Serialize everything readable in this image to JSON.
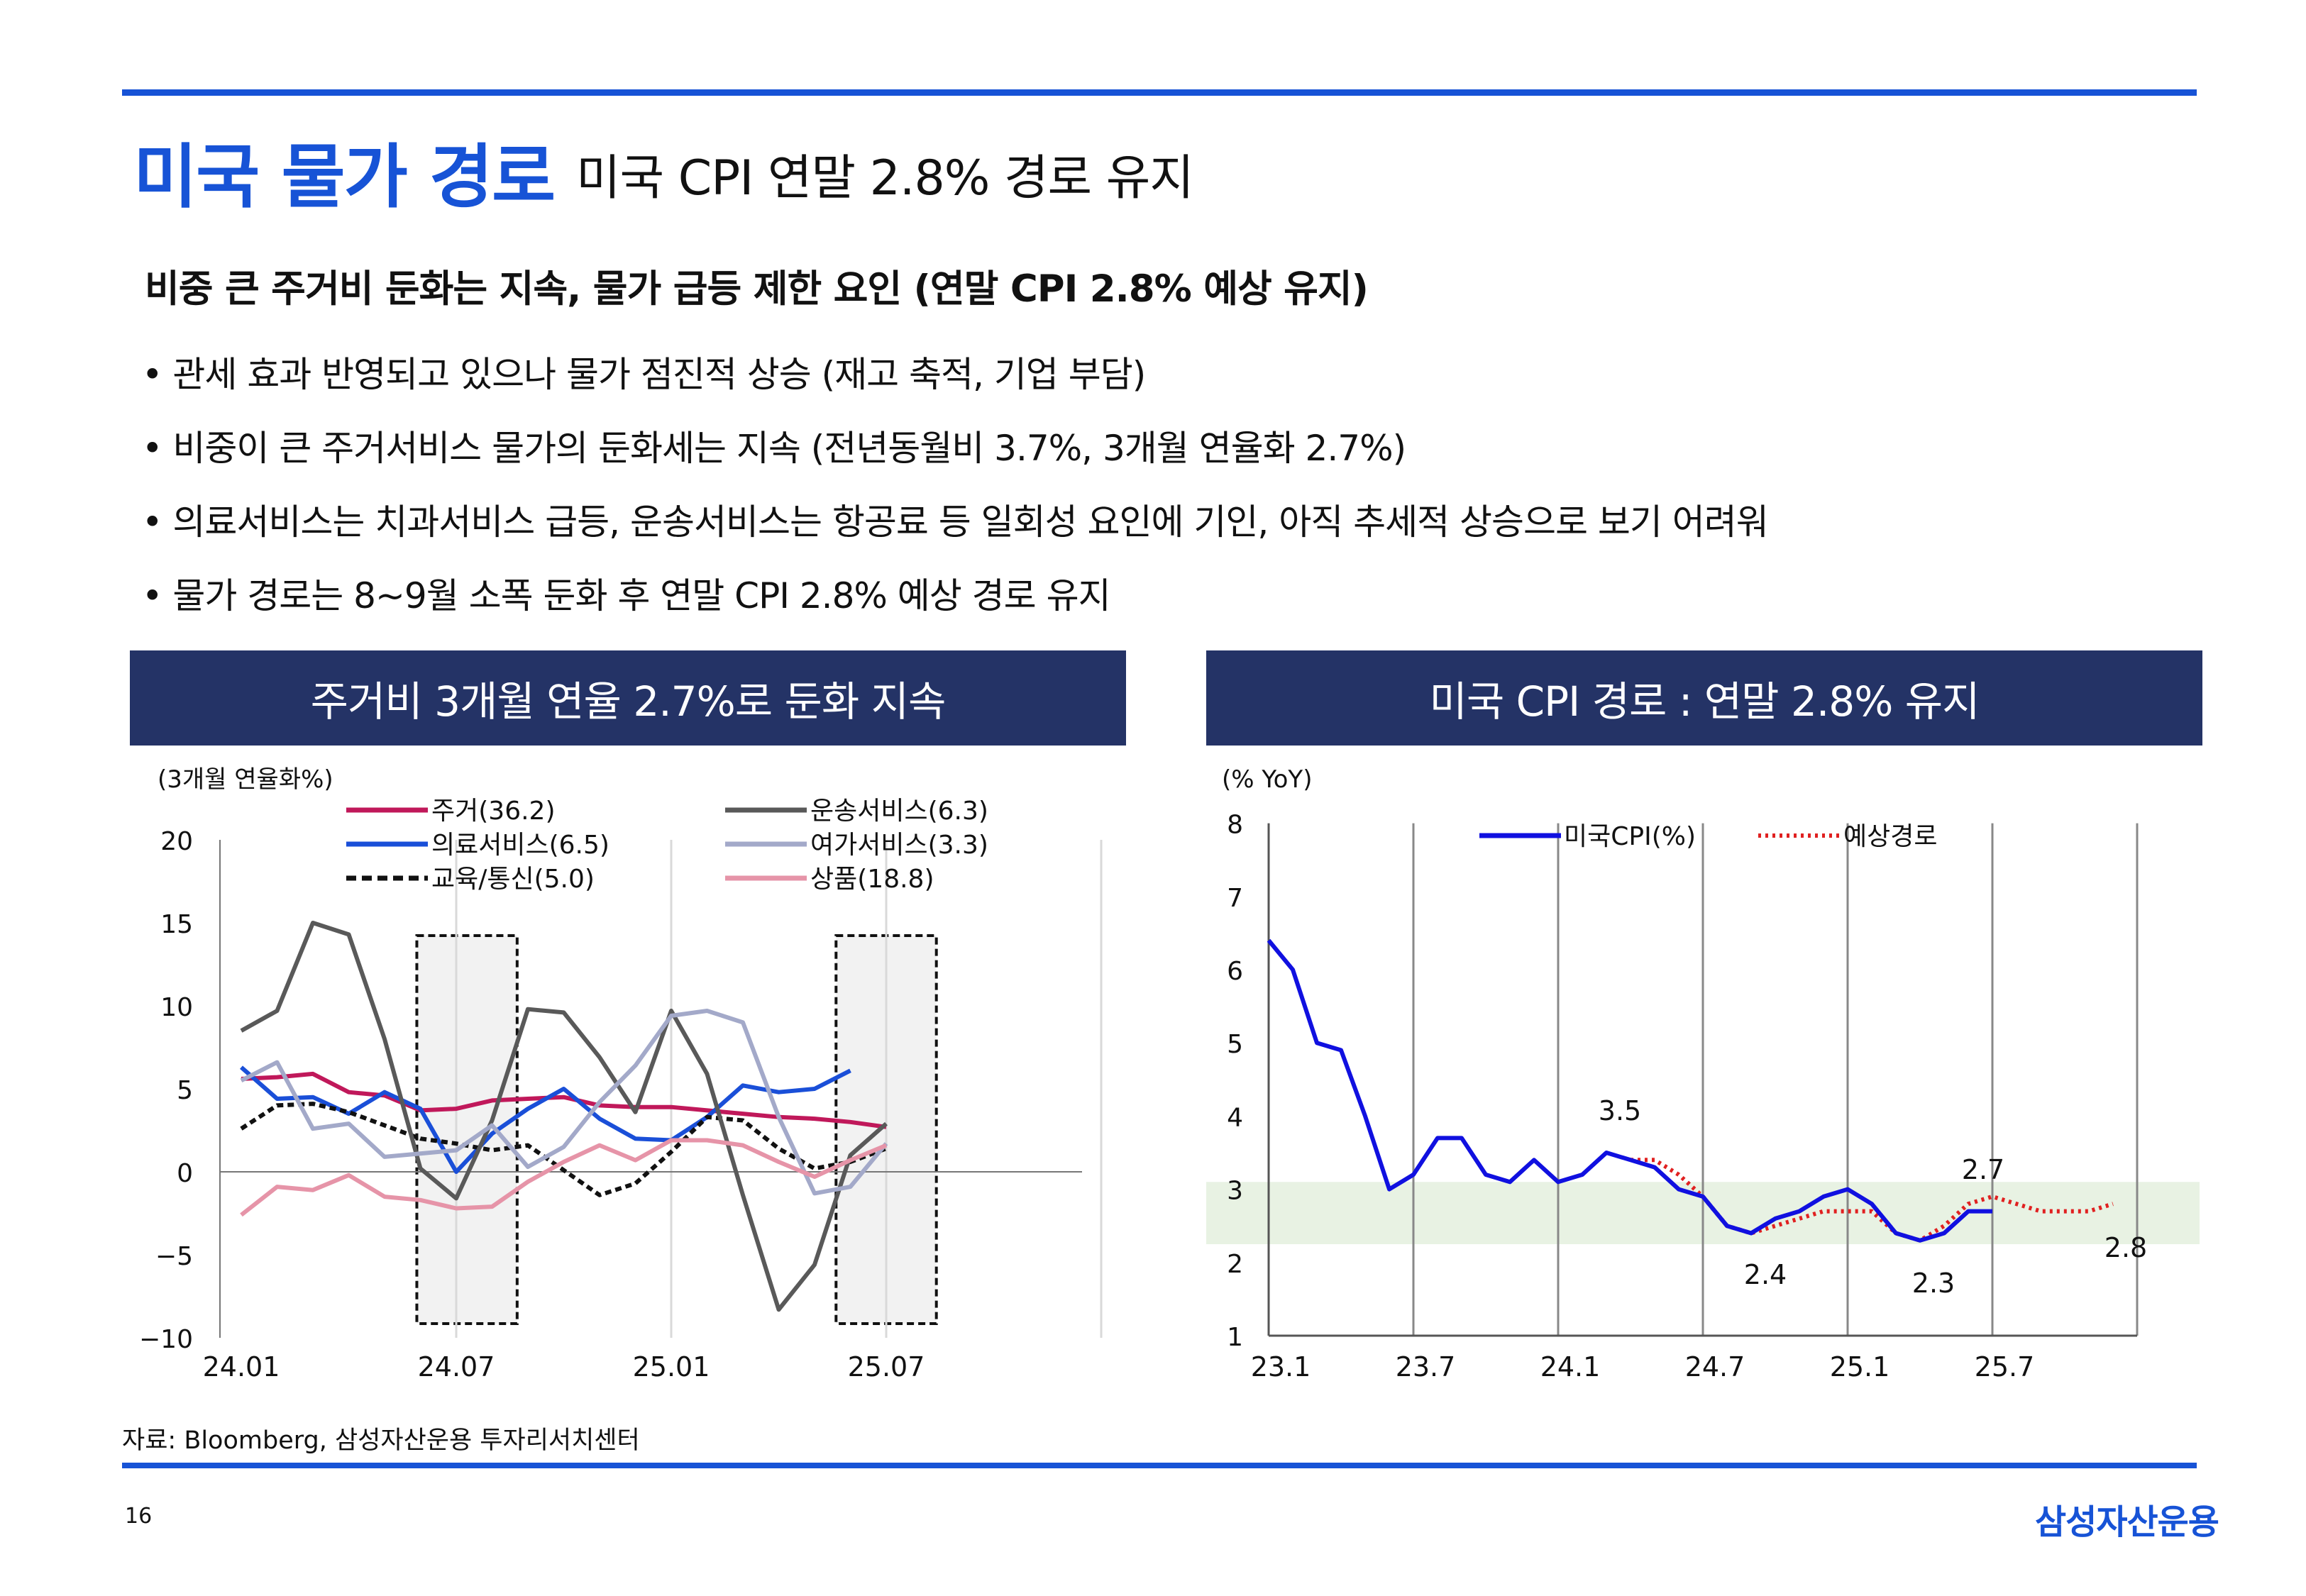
{
  "header": {
    "title_main": "미국 물가 경로",
    "title_sub": "미국 CPI 연말 2.8% 경로 유지"
  },
  "headline": "비중 큰 주거비 둔화는 지속, 물가 급등 제한 요인 (연말 CPI 2.8% 예상 유지)",
  "bullets": [
    "• 관세 효과 반영되고 있으나 물가 점진적 상승 (재고 축적, 기업 부담)",
    "•  비중이 큰 주거서비스 물가의 둔화세는 지속 (전년동월비 3.7%, 3개월 연율화 2.7%)",
    "• 의료서비스는 치과서비스 급등, 운송서비스는 항공료 등 일회성 요인에 기인, 아직 추세적 상승으로 보기 어려워",
    "• 물가 경로는 8~9월 소폭 둔화 후 연말 CPI 2.8% 예상 경로 유지"
  ],
  "panels": {
    "left_title": "주거비 3개월 연율 2.7%로 둔화 지속",
    "right_title": "미국 CPI 경로 : 연말 2.8% 유지"
  },
  "source": "자료: Bloomberg, 삼성자산운용 투자리서치센터",
  "page_number": "16",
  "brand": "삼성자산운용",
  "colors": {
    "accent": "#1753d6",
    "panel_header": "#243366",
    "housing": "#c0185a",
    "medical": "#1a4fd8",
    "education": "#111111",
    "transport": "#595959",
    "leisure": "#a3a9c9",
    "goods": "#e694a8",
    "cpi": "#1010e0",
    "forecast": "#e02020",
    "band": "#e8f2e3"
  },
  "chart_data": [
    {
      "type": "line",
      "ylabel": "(3개월 연율화%)",
      "ylim": [
        -10,
        20
      ],
      "yticks": [
        20,
        15,
        10,
        5,
        0,
        -5,
        -10
      ],
      "yticklabels": [
        "20",
        "15",
        "10",
        "5",
        "0",
        "−5",
        "−10"
      ],
      "xticklabels": [
        "24.01",
        "24.07",
        "25.01",
        "25.07"
      ],
      "xtick_index": [
        0,
        6,
        12,
        18
      ],
      "x": [
        "24.01",
        "24.02",
        "24.03",
        "24.04",
        "24.05",
        "24.06",
        "24.07",
        "24.08",
        "24.09",
        "24.10",
        "24.11",
        "24.12",
        "25.01",
        "25.02",
        "25.03",
        "25.04",
        "25.05",
        "25.06",
        "25.07"
      ],
      "highlight_ranges": [
        [
          4.9,
          7.7
        ],
        [
          16.6,
          19.4
        ]
      ],
      "grid": "vertical",
      "legend_position": "top",
      "series": [
        {
          "name": "주거(36.2)",
          "color": "#c0185a",
          "dash": "",
          "values": [
            5.6,
            5.7,
            5.9,
            4.8,
            4.6,
            3.7,
            3.8,
            4.3,
            4.4,
            4.5,
            4.0,
            3.9,
            3.9,
            3.7,
            3.5,
            3.3,
            3.2,
            3.0,
            2.7
          ]
        },
        {
          "name": "의료서비스(6.5)",
          "color": "#1a4fd8",
          "dash": "",
          "values": [
            6.3,
            4.4,
            4.5,
            3.5,
            4.8,
            3.8,
            0.0,
            2.3,
            3.8,
            5.0,
            3.2,
            2.0,
            1.9,
            3.3,
            5.2,
            4.8,
            5.0,
            6.1,
            null
          ]
        },
        {
          "name": "교육/통신(5.0)",
          "color": "#111111",
          "dash": "9 6",
          "values": [
            2.6,
            4.0,
            4.1,
            3.6,
            2.8,
            2.0,
            1.7,
            1.3,
            1.6,
            0.1,
            -1.4,
            -0.7,
            1.2,
            3.3,
            3.1,
            1.4,
            0.2,
            0.6,
            1.4
          ]
        },
        {
          "name": "운송서비스(6.3)",
          "color": "#595959",
          "dash": "",
          "values": [
            8.5,
            9.7,
            15.0,
            14.3,
            8.0,
            0.2,
            -1.6,
            3.1,
            9.8,
            9.6,
            6.9,
            3.6,
            9.7,
            5.9,
            -1.4,
            -8.3,
            -5.6,
            1.0,
            2.9
          ]
        },
        {
          "name": "여가서비스(3.3)",
          "color": "#a3a9c9",
          "dash": "",
          "values": [
            5.5,
            6.6,
            2.6,
            2.9,
            0.9,
            1.1,
            1.3,
            2.8,
            0.3,
            1.5,
            4.2,
            6.4,
            9.4,
            9.7,
            9.0,
            3.3,
            -1.3,
            -0.9,
            1.7
          ]
        },
        {
          "name": "상품(18.8)",
          "color": "#e694a8",
          "dash": "",
          "values": [
            -2.6,
            -0.9,
            -1.1,
            -0.2,
            -1.5,
            -1.7,
            -2.2,
            -2.1,
            -0.6,
            0.6,
            1.6,
            0.7,
            1.9,
            1.9,
            1.6,
            0.6,
            -0.3,
            0.7,
            1.6
          ]
        }
      ]
    },
    {
      "type": "line",
      "ylabel": "(% YoY)",
      "ylim": [
        1,
        8
      ],
      "yticks": [
        8,
        7,
        6,
        5,
        4,
        3,
        2,
        1
      ],
      "xticklabels": [
        "23.1",
        "23.7",
        "24.1",
        "24.7",
        "25.1",
        "25.7"
      ],
      "xtick_index": [
        0,
        6,
        12,
        18,
        24,
        30
      ],
      "band": [
        2.25,
        3.1
      ],
      "grid": "vertical",
      "legend_position": "top",
      "series": [
        {
          "name": "미국CPI(%)",
          "color": "#1010e0",
          "dash": "",
          "start": 0,
          "values": [
            6.4,
            6.0,
            5.0,
            4.9,
            4.0,
            3.0,
            3.2,
            3.7,
            3.7,
            3.2,
            3.1,
            3.4,
            3.1,
            3.2,
            3.5,
            3.4,
            3.3,
            3.0,
            2.9,
            2.5,
            2.4,
            2.6,
            2.7,
            2.9,
            3.0,
            2.8,
            2.4,
            2.3,
            2.4,
            2.7,
            2.7
          ]
        },
        {
          "name": "예상경로",
          "color": "#e02020",
          "dash": "4 6",
          "start": 15,
          "values": [
            3.4,
            3.4,
            3.2,
            2.9,
            2.5,
            2.4,
            2.5,
            2.6,
            2.7,
            2.7,
            2.7,
            2.4,
            2.3,
            2.5,
            2.8,
            2.9,
            2.8,
            2.7,
            2.7,
            2.7,
            2.8
          ]
        }
      ],
      "annotations": [
        "3.5",
        "2.4",
        "2.3",
        "2.7",
        "2.8"
      ]
    }
  ]
}
